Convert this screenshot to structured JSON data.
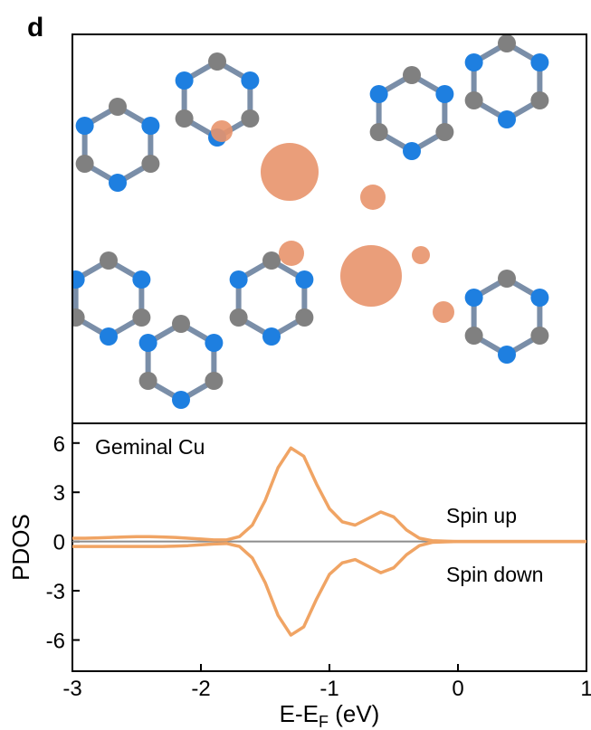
{
  "chart_data": {
    "type": "line",
    "panel_label": "d",
    "xlabel": [
      "E-E",
      "F",
      " (eV)"
    ],
    "ylabel": "PDOS",
    "annotations": [
      "Geminal Cu",
      "Spin up",
      "Spin down"
    ],
    "x": [
      -3.0,
      -2.9,
      -2.8,
      -2.7,
      -2.6,
      -2.5,
      -2.4,
      -2.3,
      -2.2,
      -2.1,
      -2.0,
      -1.9,
      -1.8,
      -1.7,
      -1.6,
      -1.5,
      -1.4,
      -1.3,
      -1.2,
      -1.1,
      -1.0,
      -0.9,
      -0.8,
      -0.7,
      -0.6,
      -0.5,
      -0.4,
      -0.3,
      -0.2,
      -0.1,
      0.0,
      0.1,
      0.2,
      0.3,
      0.4,
      0.5,
      0.6,
      0.7,
      0.8,
      0.9,
      1.0
    ],
    "series": [
      {
        "name": "Spin up",
        "color": "#f0a464",
        "values": [
          0.2,
          0.2,
          0.22,
          0.25,
          0.28,
          0.3,
          0.3,
          0.28,
          0.25,
          0.2,
          0.15,
          0.1,
          0.1,
          0.3,
          1.0,
          2.5,
          4.5,
          5.7,
          5.2,
          3.5,
          2.0,
          1.2,
          1.0,
          1.4,
          1.8,
          1.5,
          0.7,
          0.2,
          0.05,
          0.02,
          0,
          0,
          0,
          0,
          0,
          0,
          0,
          0,
          0,
          0,
          0
        ]
      },
      {
        "name": "Spin down",
        "color": "#f0a464",
        "values": [
          -0.3,
          -0.3,
          -0.3,
          -0.3,
          -0.3,
          -0.3,
          -0.3,
          -0.3,
          -0.28,
          -0.25,
          -0.2,
          -0.15,
          -0.12,
          -0.3,
          -1.0,
          -2.5,
          -4.5,
          -5.7,
          -5.2,
          -3.5,
          -2.0,
          -1.3,
          -1.1,
          -1.5,
          -1.9,
          -1.6,
          -0.8,
          -0.25,
          -0.05,
          -0.02,
          0,
          0,
          0,
          0,
          0,
          0,
          0,
          0,
          0,
          0,
          0
        ]
      }
    ],
    "xlim": [
      -3,
      1
    ],
    "xticks": [
      -3,
      -2,
      -1,
      0,
      1
    ],
    "ylim": [
      -7.9,
      7.2
    ],
    "yticks": [
      -6,
      -3,
      0,
      3,
      6
    ],
    "zero_line_color": "#8c8c8c"
  }
}
